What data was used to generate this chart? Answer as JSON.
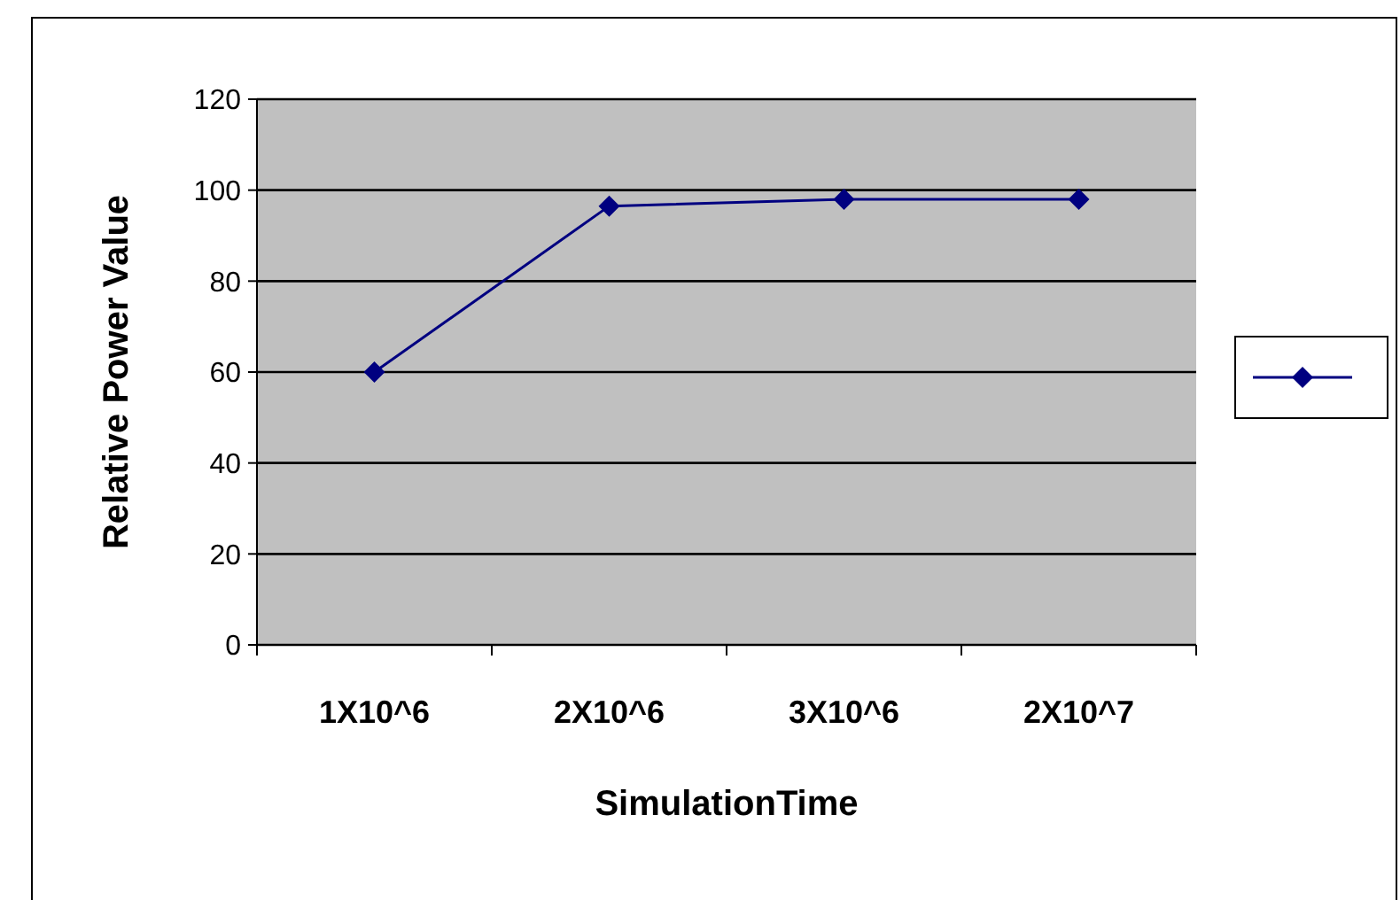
{
  "chart_data": {
    "type": "line",
    "xlabel": "SimulationTime",
    "ylabel": "Relative Power Value",
    "categories": [
      "1X10^6",
      "2X10^6",
      "3X10^6",
      "2X10^7"
    ],
    "series": [
      {
        "color": "#000080",
        "values": [
          60,
          96.5,
          98,
          98
        ]
      }
    ],
    "ylim": [
      0,
      120
    ],
    "yticks": [
      0,
      20,
      40,
      60,
      80,
      100,
      120
    ],
    "grid": "y",
    "marker": "diamond",
    "line_style": "solid"
  }
}
